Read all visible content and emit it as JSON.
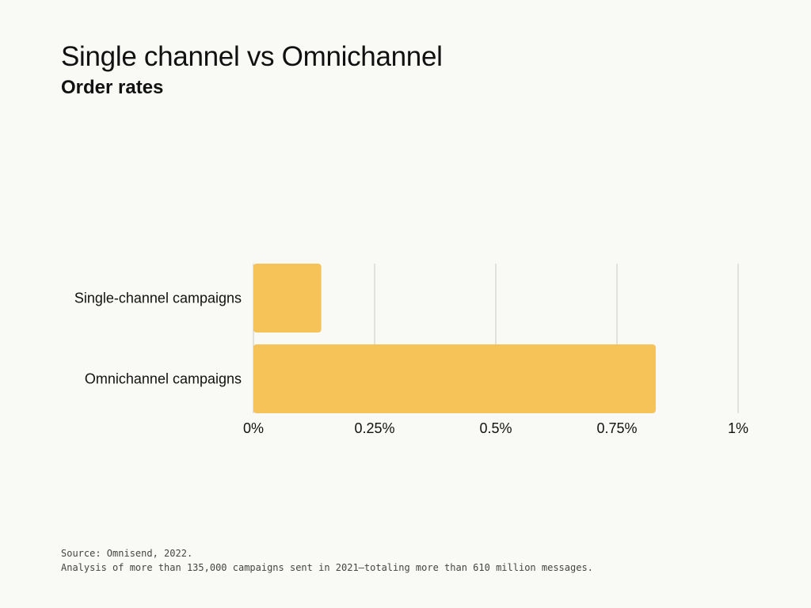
{
  "header": {
    "title": "Single channel vs Omnichannel",
    "subtitle": "Order rates"
  },
  "chart_data": {
    "type": "bar",
    "orientation": "horizontal",
    "title": "Single channel vs Omnichannel",
    "subtitle": "Order rates",
    "categories": [
      "Single-channel campaigns",
      "Omnichannel campaigns"
    ],
    "values": [
      0.14,
      0.83
    ],
    "unit": "%",
    "xlim": [
      0,
      1
    ],
    "ticks": [
      0,
      0.25,
      0.5,
      0.75,
      1
    ],
    "tick_labels": [
      "0%",
      "0.25%",
      "0.5%",
      "0.75%",
      "1%"
    ],
    "bar_color": "#f5c358",
    "grid_color": "#c9c9c9",
    "xlabel": "",
    "ylabel": ""
  },
  "footer": {
    "source": "Source: Omnisend, 2022.",
    "analysis": "Analysis of more than 135,000 campaigns sent in 2021—totaling more than 610 million messages."
  }
}
